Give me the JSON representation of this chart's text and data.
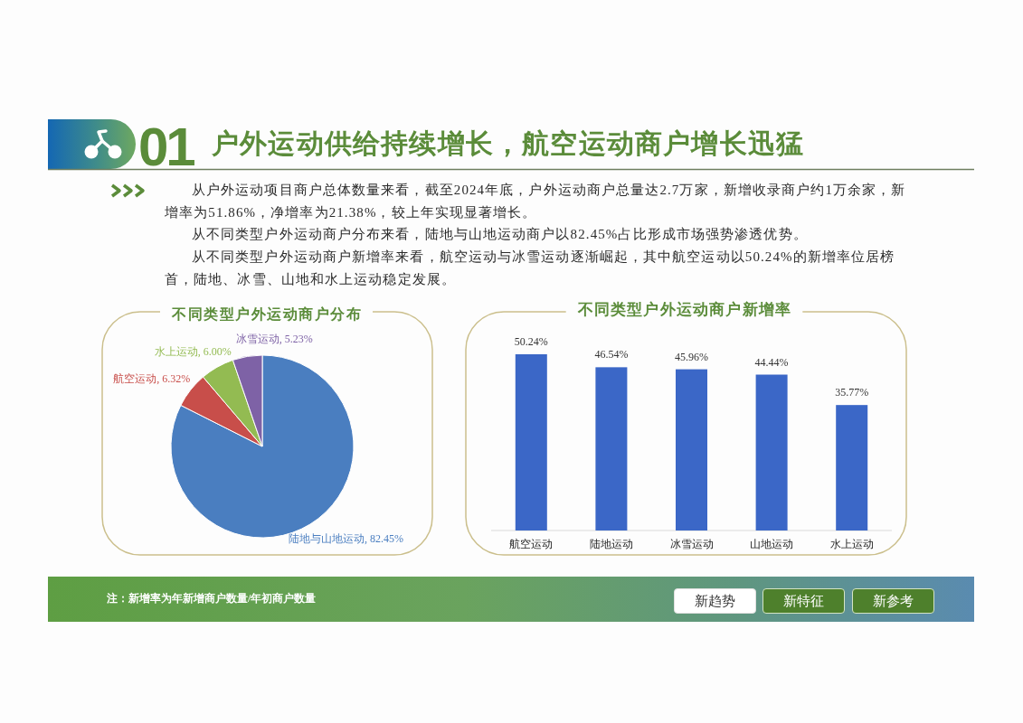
{
  "chart_data": [
    {
      "type": "other",
      "title": "户外运动供给持续增长，航空运动商户增长迅猛",
      "annotations": [
        "01",
        "从户外运动项目商户总体数量来看，截至2024年底，户外运动商户总量达2.7万家，新增收录商户约1万余家，新增率为51.86%，净增率为21.38%，较上年实现显著增长。",
        "从不同类型户外运动商户分布来看，陆地与山地运动商户以82.45%占比形成市场强势渗透优势。",
        "从不同类型户外运动商户新增率来看，航空运动与冰雪运动逐渐崛起，其中航空运动以50.24%的新增率位居榜首，陆地、冰雪、山地和水上运动稳定发展。"
      ]
    },
    {
      "type": "pie",
      "title": "不同类型户外运动商户分布",
      "categories": [
        "陆地与山地运动",
        "航空运动",
        "水上运动",
        "冰雪运动"
      ],
      "values": [
        82.45,
        6.32,
        6.0,
        5.23
      ],
      "colors": [
        "#4a7ec0",
        "#c84e4a",
        "#93bb52",
        "#7e62a6"
      ],
      "value_labels": [
        "82.45%",
        "6.32%",
        "6.00%",
        "5.23%"
      ]
    },
    {
      "type": "bar",
      "title": "不同类型户外运动商户新增率",
      "categories": [
        "航空运动",
        "陆地运动",
        "冰雪运动",
        "山地运动",
        "水上运动"
      ],
      "values": [
        50.24,
        46.54,
        45.96,
        44.44,
        35.77
      ],
      "color": "#3b67c7",
      "value_labels": [
        "50.24%",
        "46.54%",
        "45.96%",
        "44.44%",
        "35.77%"
      ],
      "tick_labels": "x"
    },
    {
      "type": "other",
      "annotations": [
        "注：新增率为年新增商户数量/年初商户数量",
        "新趋势",
        "新特征",
        "新参考"
      ]
    }
  ]
}
